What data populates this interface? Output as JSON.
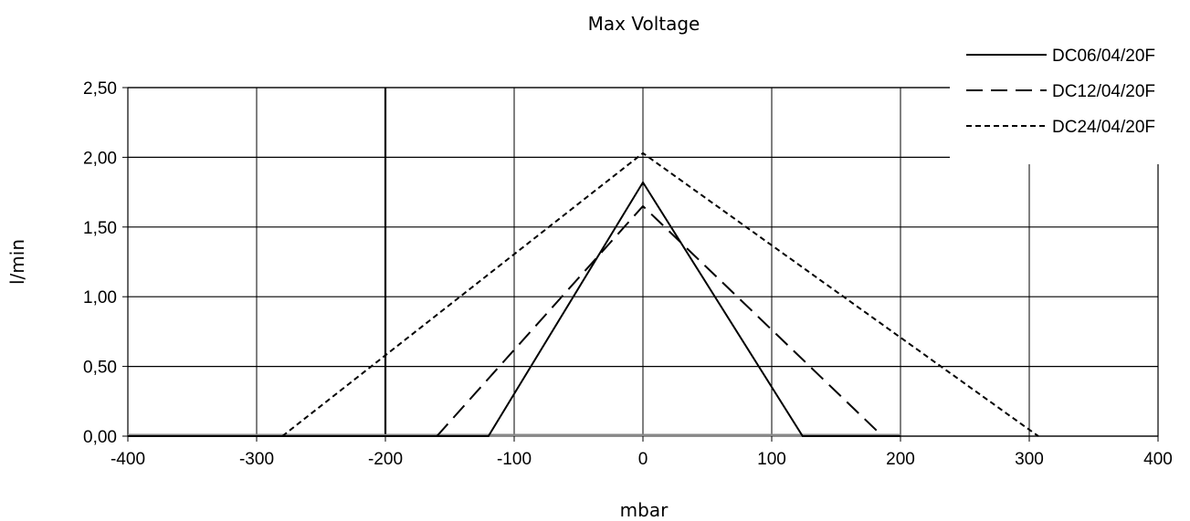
{
  "chart_data": {
    "type": "line",
    "title": "Max Voltage",
    "xlabel": "mbar",
    "ylabel": "l/min",
    "xlim": [
      -400,
      400
    ],
    "ylim": [
      0,
      2.5
    ],
    "xticks": [
      -400,
      -300,
      -200,
      -100,
      0,
      100,
      200,
      300,
      400
    ],
    "xtick_labels": [
      "-400",
      "-300",
      "-200",
      "-100",
      "0",
      "100",
      "200",
      "300",
      "400"
    ],
    "yticks": [
      0,
      0.5,
      1,
      1.5,
      2,
      2.5
    ],
    "ytick_labels": [
      "0,00",
      "0,50",
      "1,00",
      "1,50",
      "2,00",
      "2,50"
    ],
    "grid": true,
    "legend_position": "top-right",
    "series": [
      {
        "name": "DC06/04/20F",
        "style": "solid",
        "color": "#000000",
        "points": [
          [
            -400,
            0
          ],
          [
            -120,
            0
          ],
          [
            0,
            1.82
          ],
          [
            124,
            0
          ],
          [
            200,
            0
          ]
        ]
      },
      {
        "name": "DC12/04/20F",
        "style": "dashed",
        "color": "#000000",
        "points": [
          [
            -160,
            0
          ],
          [
            0,
            1.65
          ],
          [
            186,
            0
          ]
        ]
      },
      {
        "name": "DC24/04/20F",
        "style": "dotted",
        "color": "#000000",
        "points": [
          [
            -280,
            0
          ],
          [
            0,
            2.03
          ],
          [
            307,
            0
          ]
        ]
      }
    ]
  }
}
